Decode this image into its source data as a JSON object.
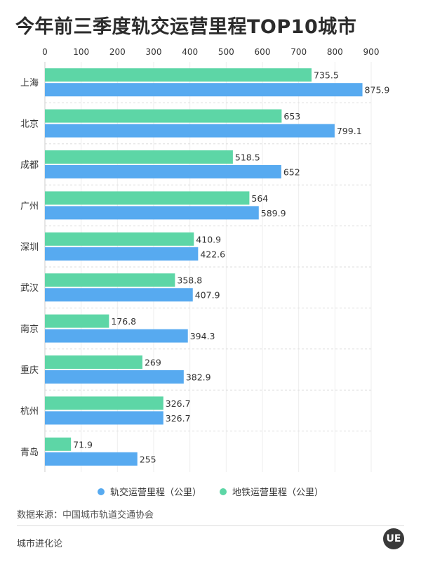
{
  "header": {
    "title": "今年前三季度轨交运营里程TOP10城市"
  },
  "chart_data": {
    "type": "bar",
    "orientation": "horizontal",
    "title": "今年前三季度轨交运营里程TOP10城市",
    "categories": [
      "上海",
      "北京",
      "成都",
      "广州",
      "深圳",
      "武汉",
      "南京",
      "重庆",
      "杭州",
      "青岛"
    ],
    "series": [
      {
        "name": "地铁运营里程（公里）",
        "color": "#5dd6a6",
        "values": [
          735.5,
          653,
          518.5,
          564,
          410.9,
          358.8,
          176.8,
          269,
          326.7,
          71.9
        ]
      },
      {
        "name": "轨交运营里程（公里）",
        "color": "#57aaf0",
        "values": [
          875.9,
          799.1,
          652,
          589.9,
          422.6,
          407.9,
          394.3,
          382.9,
          326.7,
          255
        ]
      }
    ],
    "value_labels": [
      [
        "735.5",
        "653",
        "518.5",
        "564",
        "410.9",
        "358.8",
        "176.8",
        "269",
        "326.7",
        "71.9"
      ],
      [
        "875.9",
        "799.1",
        "652",
        "589.9",
        "422.6",
        "407.9",
        "394.3",
        "382.9",
        "326.7",
        "255"
      ]
    ],
    "xlim": [
      0,
      900
    ],
    "xticks": [
      "0",
      "100",
      "200",
      "300",
      "400",
      "500",
      "600",
      "700",
      "800",
      "900"
    ],
    "xlabel": "",
    "ylabel": "",
    "grid": true,
    "legend_position": "bottom"
  },
  "legend": {
    "items": [
      {
        "label": "轨交运营里程（公里）",
        "color": "#57aaf0"
      },
      {
        "label": "地铁运营里程（公里）",
        "color": "#5dd6a6"
      }
    ]
  },
  "source": "数据来源：中国城市轨道交通协会",
  "footer": {
    "brand": "城市进化论",
    "logo_text": "UE"
  }
}
